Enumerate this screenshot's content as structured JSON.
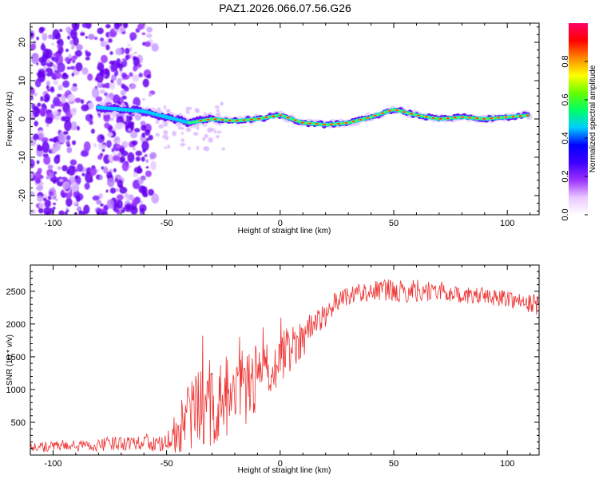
{
  "figure_title": "PAZ1.2026.066.07.56.G26",
  "colors": {
    "snr_line": "#ee3333",
    "ridge_core": "#ff2a2a",
    "ridge_edge": "#00ccff",
    "scatter": "#7a1dff"
  },
  "chart_data": [
    {
      "type": "heatmap",
      "title": "",
      "xlabel": "Height of straight line (km)",
      "ylabel": "Frequency (Hz)",
      "xlim": [
        -110,
        114
      ],
      "ylim": [
        -25,
        25
      ],
      "xticks": [
        -100,
        -50,
        0,
        50,
        100
      ],
      "yticks": [
        -20,
        -10,
        0,
        10,
        20
      ],
      "colorbar": {
        "label": "Normalized spectral amplitude",
        "range": [
          0,
          1
        ],
        "ticks": [
          "0.0",
          "0.2",
          "0.4",
          "0.6",
          "0.8"
        ],
        "tick_values": [
          0.0,
          0.2,
          0.4,
          0.6,
          0.8
        ],
        "colors": [
          "#ffffff",
          "#e9c7ff",
          "#9b30ff",
          "#3d00ff",
          "#0000ff",
          "#00ccff",
          "#00ff66",
          "#66ff00",
          "#ffff00",
          "#ff8800",
          "#ff0000",
          "#ff0066"
        ]
      },
      "ridge": {
        "x": [
          -80,
          -70,
          -60,
          -50,
          -40,
          -30,
          -20,
          -10,
          0,
          10,
          20,
          30,
          40,
          50,
          60,
          70,
          80,
          90,
          100,
          110
        ],
        "y": [
          3,
          2.5,
          2,
          0.5,
          -1,
          0,
          -0.5,
          0,
          1,
          -1,
          -1.5,
          -1,
          0.5,
          2.5,
          1,
          0,
          0.5,
          0,
          0.5,
          1
        ]
      },
      "scatter_region": {
        "x_range": [
          -110,
          -55
        ],
        "y_range": [
          -25,
          25
        ]
      }
    },
    {
      "type": "line",
      "title": "",
      "xlabel": "Height of straight line (km)",
      "ylabel": "SNR (10 * v/v)",
      "xlim": [
        -110,
        114
      ],
      "ylim": [
        0,
        2900
      ],
      "xticks": [
        -100,
        -50,
        0,
        50,
        100
      ],
      "yticks": [
        500,
        1000,
        1500,
        2000,
        2500
      ],
      "series": [
        {
          "name": "SNR",
          "x": [
            -110,
            -100,
            -90,
            -80,
            -70,
            -60,
            -55,
            -50,
            -45,
            -40,
            -35,
            -30,
            -25,
            -20,
            -15,
            -10,
            -5,
            0,
            5,
            10,
            15,
            20,
            25,
            30,
            35,
            40,
            45,
            50,
            55,
            60,
            65,
            70,
            75,
            80,
            85,
            90,
            95,
            100,
            105,
            110,
            114
          ],
          "y": [
            130,
            130,
            140,
            150,
            190,
            210,
            170,
            160,
            380,
            600,
            650,
            720,
            820,
            900,
            1050,
            1150,
            1300,
            1500,
            1650,
            1800,
            2000,
            2150,
            2350,
            2450,
            2480,
            2500,
            2520,
            2500,
            2480,
            2520,
            2500,
            2500,
            2470,
            2440,
            2420,
            2440,
            2400,
            2400,
            2350,
            2300,
            2300
          ],
          "noise_amplitude": [
            90,
            90,
            90,
            100,
            120,
            130,
            120,
            150,
            350,
            650,
            700,
            600,
            700,
            650,
            600,
            500,
            450,
            400,
            350,
            300,
            250,
            180,
            150,
            150,
            150,
            160,
            170,
            170,
            170,
            180,
            160,
            150,
            140,
            130,
            130,
            130,
            130,
            130,
            140,
            160,
            160
          ]
        }
      ]
    }
  ]
}
